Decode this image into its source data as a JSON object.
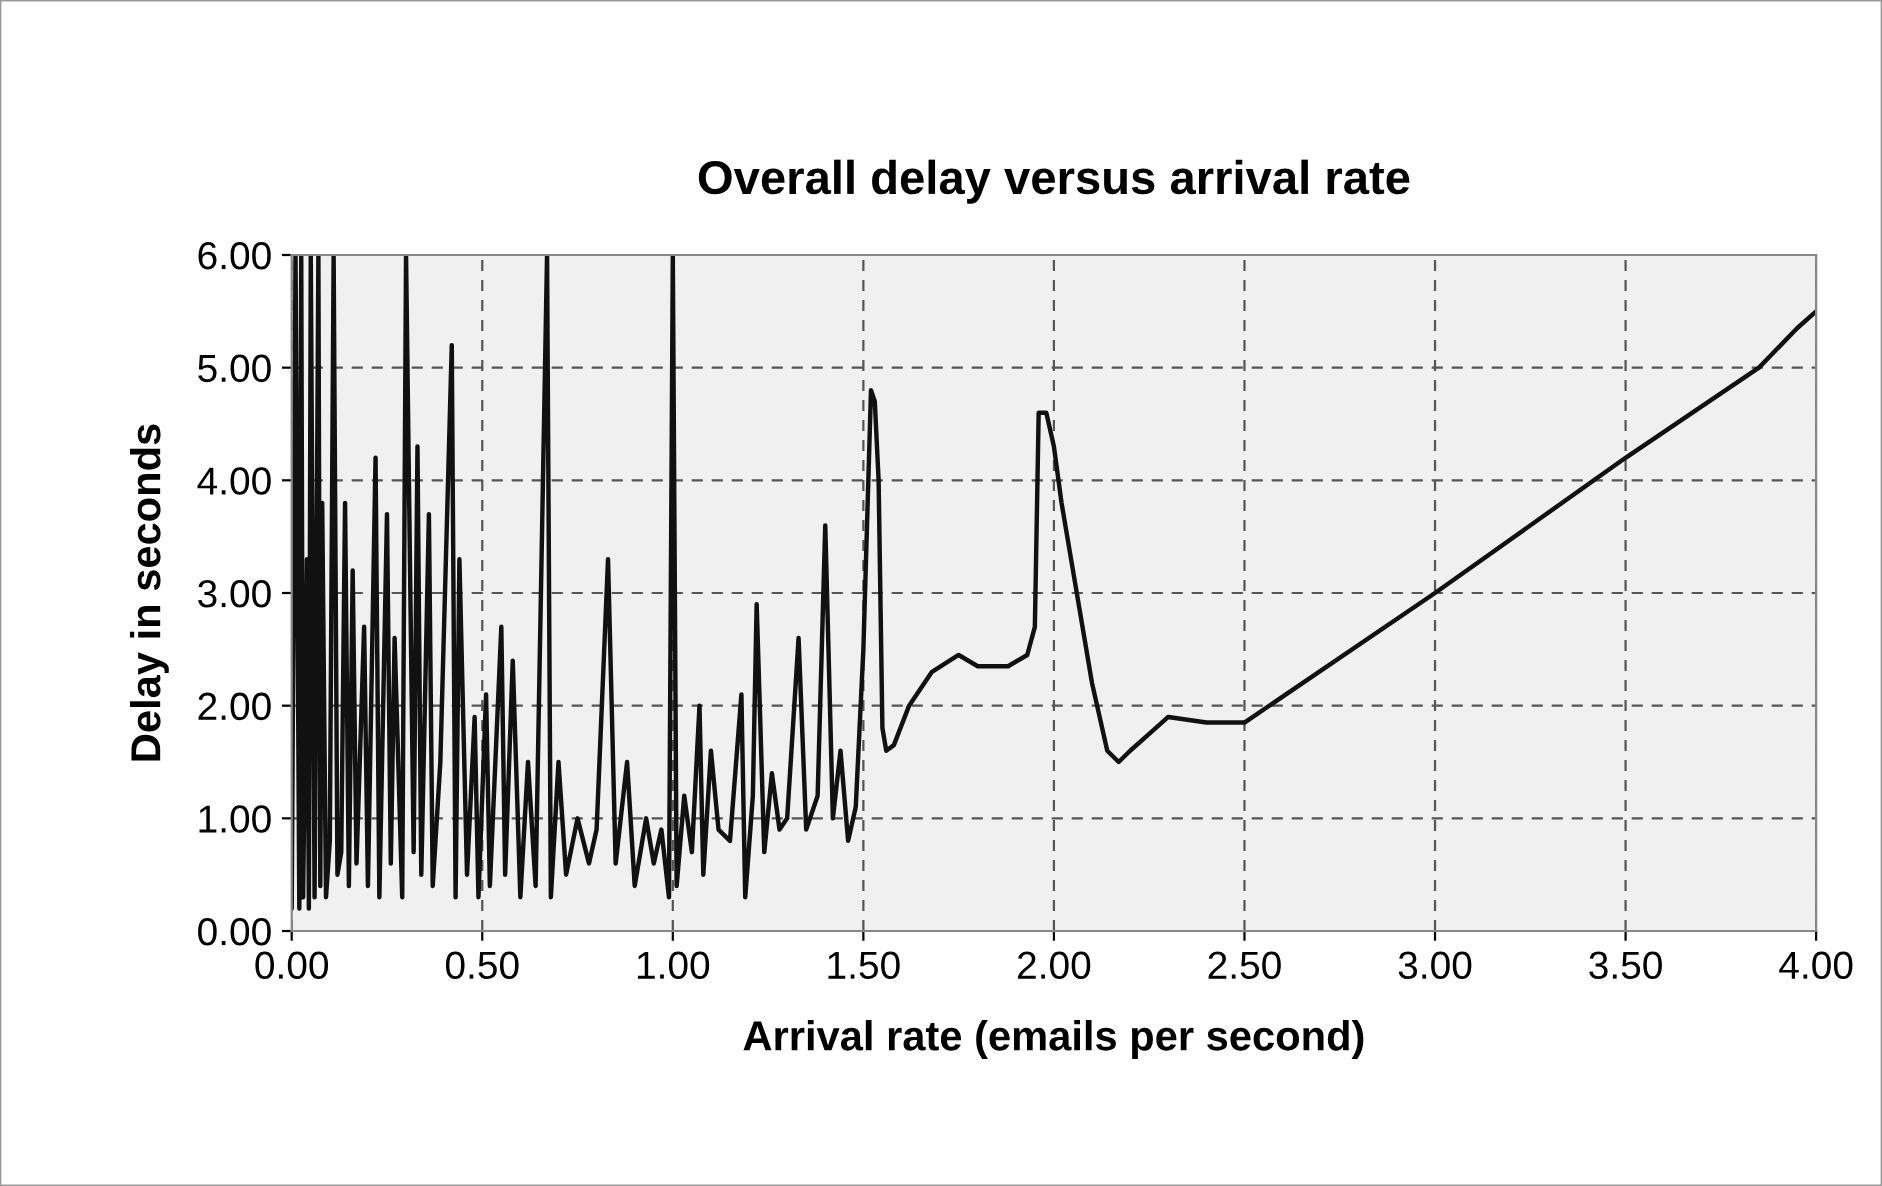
{
  "chart_data": {
    "type": "line",
    "title": "Overall delay versus arrival rate",
    "xlabel": "Arrival rate (emails per second)",
    "ylabel": "Delay in seconds",
    "xlim": [
      0,
      4
    ],
    "xticks": [
      {
        "value": 0,
        "label": "0.00"
      },
      {
        "value": 0.5,
        "label": "0.50"
      },
      {
        "value": 1,
        "label": "1.00"
      },
      {
        "value": 1.5,
        "label": "1.50"
      },
      {
        "value": 2,
        "label": "2.00"
      },
      {
        "value": 2.5,
        "label": "2.50"
      },
      {
        "value": 3,
        "label": "3.00"
      },
      {
        "value": 3.5,
        "label": "3.50"
      },
      {
        "value": 4,
        "label": "4.00"
      }
    ],
    "ylim": [
      0,
      6
    ],
    "yticks": [
      {
        "value": 0,
        "label": "0.00"
      },
      {
        "value": 1,
        "label": "1.00"
      },
      {
        "value": 2,
        "label": "2.00"
      },
      {
        "value": 3,
        "label": "3.00"
      },
      {
        "value": 4,
        "label": "4.00"
      },
      {
        "value": 5,
        "label": "5.00"
      },
      {
        "value": 6,
        "label": "6.00"
      }
    ],
    "grid": true,
    "marker": "none",
    "line_style": "solid",
    "series": [
      {
        "color": "#111111",
        "x": [
          0.0,
          0.01,
          0.02,
          0.025,
          0.03,
          0.04,
          0.045,
          0.05,
          0.06,
          0.07,
          0.075,
          0.08,
          0.09,
          0.1,
          0.11,
          0.12,
          0.13,
          0.14,
          0.15,
          0.16,
          0.17,
          0.19,
          0.2,
          0.22,
          0.23,
          0.25,
          0.26,
          0.27,
          0.29,
          0.3,
          0.32,
          0.33,
          0.34,
          0.36,
          0.37,
          0.39,
          0.42,
          0.43,
          0.44,
          0.46,
          0.48,
          0.49,
          0.51,
          0.52,
          0.55,
          0.56,
          0.58,
          0.6,
          0.62,
          0.64,
          0.67,
          0.68,
          0.7,
          0.72,
          0.75,
          0.78,
          0.8,
          0.83,
          0.85,
          0.88,
          0.9,
          0.93,
          0.95,
          0.97,
          0.99,
          1.0,
          1.01,
          1.03,
          1.05,
          1.07,
          1.08,
          1.1,
          1.12,
          1.15,
          1.18,
          1.19,
          1.21,
          1.22,
          1.24,
          1.26,
          1.28,
          1.3,
          1.33,
          1.35,
          1.38,
          1.4,
          1.42,
          1.44,
          1.46,
          1.48,
          1.5,
          1.52,
          1.53,
          1.54,
          1.55,
          1.56,
          1.58,
          1.62,
          1.68,
          1.75,
          1.8,
          1.88,
          1.93,
          1.95,
          1.96,
          1.98,
          2.0,
          2.02,
          2.06,
          2.1,
          2.14,
          2.17,
          2.2,
          2.25,
          2.3,
          2.4,
          2.5,
          3.0,
          3.5,
          3.85,
          3.95,
          4.0
        ],
        "values": [
          0.2,
          6.0,
          0.2,
          6.0,
          0.3,
          3.3,
          0.2,
          6.0,
          0.3,
          6.0,
          0.4,
          3.8,
          0.3,
          0.8,
          6.0,
          0.5,
          0.7,
          3.8,
          0.4,
          3.2,
          0.6,
          2.7,
          0.4,
          4.2,
          0.3,
          3.7,
          0.6,
          2.6,
          0.3,
          6.0,
          0.7,
          4.3,
          0.5,
          3.7,
          0.4,
          1.5,
          5.2,
          0.3,
          3.3,
          0.5,
          1.9,
          0.3,
          2.1,
          0.4,
          2.7,
          0.5,
          2.4,
          0.3,
          1.5,
          0.4,
          6.0,
          0.3,
          1.5,
          0.5,
          1.0,
          0.6,
          0.9,
          3.3,
          0.6,
          1.5,
          0.4,
          1.0,
          0.6,
          0.9,
          0.3,
          6.0,
          0.4,
          1.2,
          0.7,
          2.0,
          0.5,
          1.6,
          0.9,
          0.8,
          2.1,
          0.3,
          1.2,
          2.9,
          0.7,
          1.4,
          0.9,
          1.0,
          2.6,
          0.9,
          1.2,
          3.6,
          1.0,
          1.6,
          0.8,
          1.1,
          2.5,
          4.8,
          4.7,
          4.0,
          1.8,
          1.6,
          1.65,
          2.0,
          2.3,
          2.45,
          2.35,
          2.35,
          2.45,
          2.7,
          4.6,
          4.6,
          4.3,
          3.8,
          3.0,
          2.2,
          1.6,
          1.5,
          1.6,
          1.75,
          1.9,
          1.85,
          1.85,
          3.0,
          4.2,
          5.0,
          5.35,
          5.5
        ]
      }
    ]
  }
}
